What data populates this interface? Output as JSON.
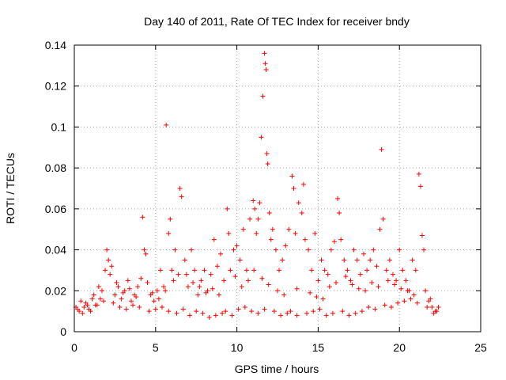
{
  "chart_data": {
    "type": "scatter",
    "title": "Day 140 of 2011, Rate Of TEC Index for receiver bndy",
    "xlabel": "GPS time / hours",
    "ylabel": "ROTI / TECUs",
    "xlim": [
      0,
      25
    ],
    "ylim": [
      0,
      0.14
    ],
    "xticks": [
      "0",
      "5",
      "10",
      "15",
      "20",
      "25"
    ],
    "yticks": [
      "0",
      "0.02",
      "0.04",
      "0.06",
      "0.08",
      "0.1",
      "0.12",
      "0.14"
    ],
    "grid": true,
    "marker": "plus",
    "color": "#ff0000",
    "series": [
      {
        "x": [
          0.1,
          0.3,
          0.5,
          0.7,
          0.9,
          1.1,
          1.3,
          1.5,
          1.7,
          1.9,
          2.0,
          2.1,
          2.2,
          2.3,
          2.5,
          2.7,
          2.9,
          3.1,
          3.3,
          3.5,
          3.7,
          3.9,
          4.1,
          4.2,
          4.3,
          4.4,
          4.5,
          4.7,
          4.9,
          5.1,
          5.3,
          5.5,
          5.65,
          5.8,
          5.9,
          6.0,
          6.2,
          6.4,
          6.5,
          6.6,
          6.8,
          7.0,
          7.2,
          7.4,
          7.6,
          7.8,
          8.0,
          8.2,
          8.4,
          8.6,
          8.8,
          9.0,
          9.2,
          9.4,
          9.5,
          9.6,
          9.8,
          10.0,
          10.2,
          10.4,
          10.6,
          10.8,
          11.0,
          11.1,
          11.2,
          11.3,
          11.4,
          11.5,
          11.6,
          11.7,
          11.75,
          11.8,
          11.85,
          11.9,
          12.0,
          12.1,
          12.2,
          12.4,
          12.6,
          12.8,
          13.0,
          13.2,
          13.4,
          13.5,
          13.6,
          13.8,
          14.0,
          14.1,
          14.2,
          14.4,
          14.6,
          14.8,
          15.0,
          15.2,
          15.4,
          15.6,
          15.8,
          16.0,
          16.2,
          16.3,
          16.4,
          16.6,
          16.8,
          17.0,
          17.2,
          17.4,
          17.6,
          17.8,
          18.0,
          18.2,
          18.4,
          18.6,
          18.8,
          18.9,
          19.0,
          19.2,
          19.4,
          19.6,
          19.8,
          20.0,
          20.2,
          20.4,
          20.6,
          20.8,
          21.0,
          21.2,
          21.3,
          21.4,
          21.5,
          21.6,
          21.8,
          22.0,
          22.2,
          22.4
        ],
        "y": [
          0.012,
          0.01,
          0.009,
          0.014,
          0.011,
          0.016,
          0.013,
          0.022,
          0.02,
          0.03,
          0.04,
          0.035,
          0.028,
          0.032,
          0.018,
          0.022,
          0.016,
          0.02,
          0.025,
          0.015,
          0.018,
          0.022,
          0.026,
          0.056,
          0.04,
          0.038,
          0.024,
          0.018,
          0.015,
          0.02,
          0.03,
          0.022,
          0.101,
          0.048,
          0.055,
          0.03,
          0.04,
          0.028,
          0.07,
          0.066,
          0.035,
          0.022,
          0.04,
          0.03,
          0.018,
          0.025,
          0.03,
          0.02,
          0.028,
          0.045,
          0.032,
          0.038,
          0.025,
          0.06,
          0.048,
          0.03,
          0.04,
          0.042,
          0.035,
          0.05,
          0.03,
          0.055,
          0.064,
          0.06,
          0.048,
          0.055,
          0.063,
          0.095,
          0.115,
          0.136,
          0.131,
          0.128,
          0.087,
          0.082,
          0.058,
          0.045,
          0.05,
          0.04,
          0.03,
          0.035,
          0.042,
          0.05,
          0.076,
          0.07,
          0.048,
          0.063,
          0.058,
          0.072,
          0.045,
          0.04,
          0.03,
          0.048,
          0.025,
          0.035,
          0.03,
          0.028,
          0.04,
          0.044,
          0.065,
          0.058,
          0.045,
          0.035,
          0.03,
          0.025,
          0.04,
          0.035,
          0.028,
          0.038,
          0.03,
          0.035,
          0.04,
          0.032,
          0.05,
          0.089,
          0.055,
          0.03,
          0.035,
          0.028,
          0.025,
          0.04,
          0.03,
          0.025,
          0.02,
          0.035,
          0.03,
          0.077,
          0.071,
          0.047,
          0.04,
          0.02,
          0.015,
          0.012,
          0.01,
          0.012
        ]
      },
      {
        "x": [
          0.2,
          0.6,
          1.0,
          1.4,
          1.8,
          2.4,
          2.8,
          3.2,
          3.6,
          4.0,
          4.6,
          5.0,
          5.4,
          5.8,
          6.3,
          6.7,
          7.1,
          7.5,
          7.9,
          8.3,
          8.7,
          9.1,
          9.3,
          9.7,
          10.1,
          10.5,
          10.9,
          11.3,
          11.7,
          12.3,
          12.7,
          13.1,
          13.3,
          13.7,
          14.3,
          14.7,
          15.1,
          15.5,
          15.9,
          16.5,
          16.9,
          17.3,
          17.7,
          18.1,
          18.5,
          19.1,
          19.5,
          19.9,
          20.3,
          20.7,
          21.1,
          21.7,
          22.1,
          22.3
        ],
        "y": [
          0.011,
          0.012,
          0.01,
          0.013,
          0.015,
          0.014,
          0.012,
          0.011,
          0.013,
          0.012,
          0.01,
          0.011,
          0.012,
          0.01,
          0.009,
          0.011,
          0.008,
          0.01,
          0.009,
          0.007,
          0.008,
          0.009,
          0.01,
          0.008,
          0.011,
          0.012,
          0.01,
          0.009,
          0.011,
          0.01,
          0.008,
          0.009,
          0.01,
          0.008,
          0.009,
          0.01,
          0.011,
          0.008,
          0.009,
          0.01,
          0.008,
          0.009,
          0.01,
          0.012,
          0.011,
          0.013,
          0.012,
          0.014,
          0.015,
          0.016,
          0.014,
          0.012,
          0.009,
          0.01
        ]
      },
      {
        "x": [
          0.4,
          0.8,
          1.2,
          1.6,
          2.6,
          3.0,
          3.4,
          3.8,
          4.8,
          5.2,
          5.6,
          6.1,
          6.9,
          7.3,
          7.7,
          8.1,
          8.5,
          8.9,
          9.9,
          10.3,
          10.7,
          11.05,
          11.55,
          11.95,
          12.5,
          12.9,
          13.7,
          14.5,
          14.9,
          15.3,
          15.7,
          16.1,
          16.7,
          17.1,
          17.5,
          17.9,
          18.3,
          18.7,
          19.3,
          19.7,
          20.1,
          20.5,
          20.9,
          21.9
        ],
        "y": [
          0.015,
          0.013,
          0.018,
          0.016,
          0.024,
          0.019,
          0.021,
          0.017,
          0.019,
          0.016,
          0.02,
          0.025,
          0.028,
          0.024,
          0.022,
          0.019,
          0.021,
          0.018,
          0.027,
          0.022,
          0.025,
          0.03,
          0.026,
          0.023,
          0.02,
          0.018,
          0.021,
          0.019,
          0.017,
          0.016,
          0.022,
          0.024,
          0.027,
          0.023,
          0.021,
          0.02,
          0.024,
          0.022,
          0.025,
          0.023,
          0.021,
          0.02,
          0.018,
          0.016
        ]
      }
    ]
  }
}
